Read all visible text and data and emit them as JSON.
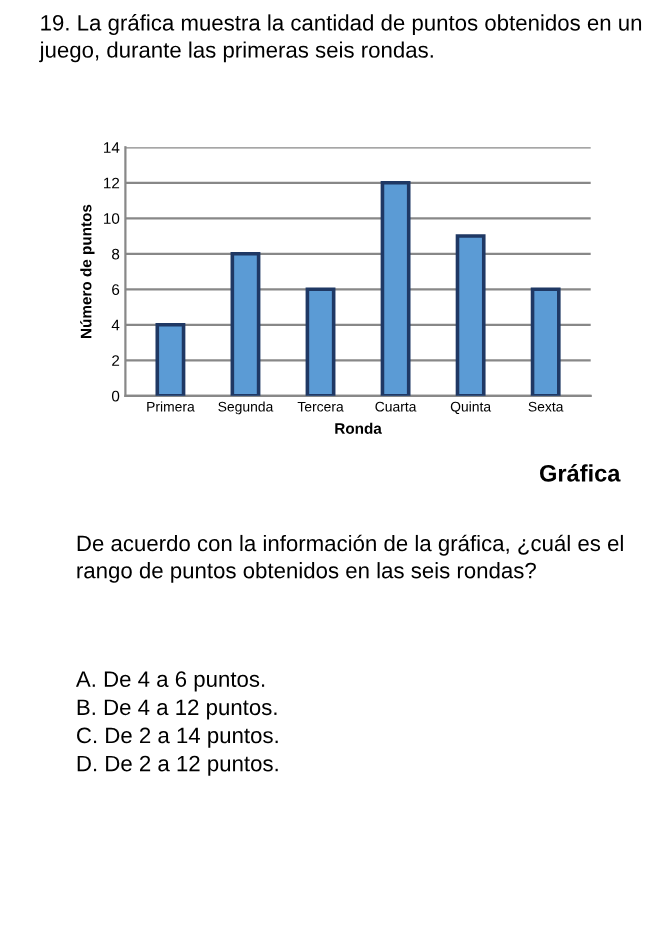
{
  "chart_data": {
    "type": "bar",
    "title": "19. La gráfica muestra la cantidad de puntos obtenidos en un juego, durante las primeras seis rondas.",
    "xlabel": "Ronda",
    "ylabel": "Número de puntos",
    "categories": [
      "Primera",
      "Segunda",
      "Tercera",
      "Cuarta",
      "Quinta",
      "Sexta"
    ],
    "values": [
      4,
      8,
      6,
      12,
      9,
      6
    ],
    "color": "#5b9bd5",
    "ylim": [
      0,
      14
    ],
    "yticks": [
      0,
      2,
      4,
      6,
      8,
      10,
      12,
      14
    ],
    "grid": "y",
    "legend": false,
    "annotations": [
      "Gráfica",
      "De acuerdo con la información de la gráfica, ¿cuál es el rango de puntos obtenidos en las seis rondas?",
      "A. De 4 a 6 puntos.",
      "B. De 4 a 12 puntos.",
      "C. De 2 a 14 puntos.",
      "D. De 2 a 12 puntos."
    ]
  }
}
